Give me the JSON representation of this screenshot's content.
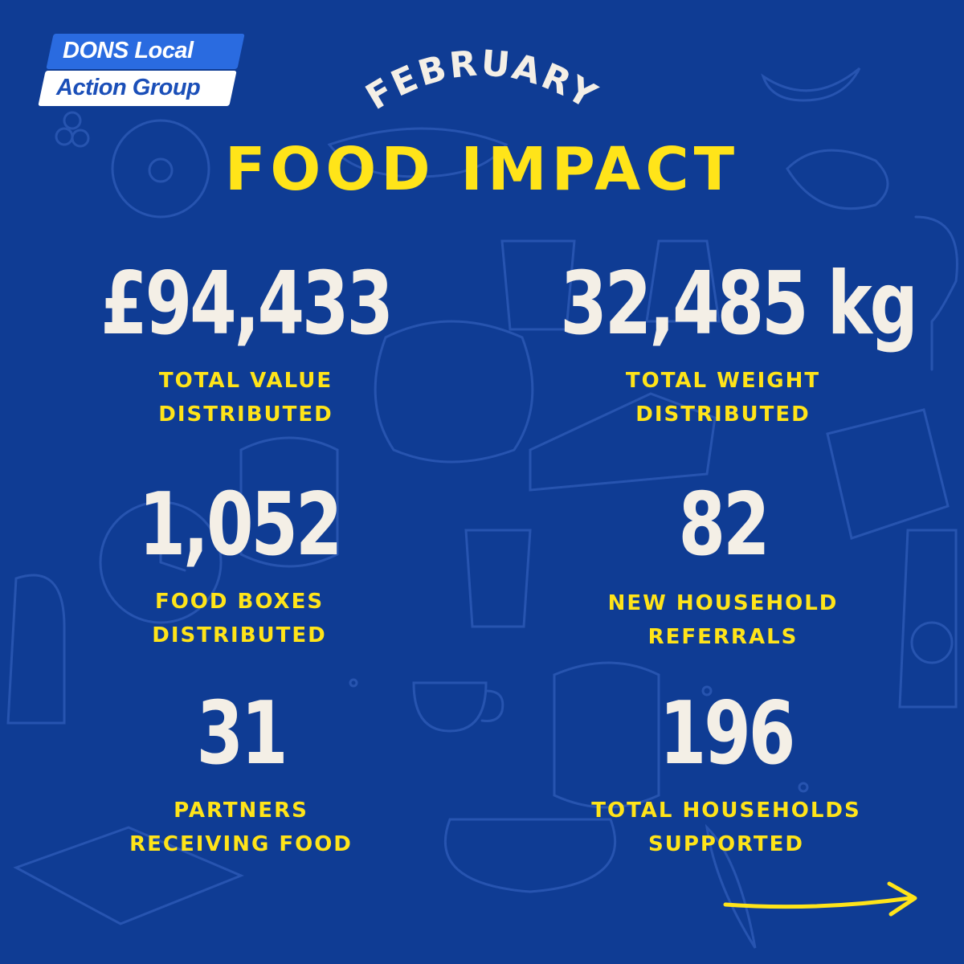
{
  "brand": {
    "line1": "DONS Local",
    "line2": "Action Group",
    "colors": {
      "background": "#0f3c94",
      "accent": "#ffe419",
      "number": "#f4efe6",
      "logo_blue": "#2a6be0"
    }
  },
  "header": {
    "month": "FEBRUARY",
    "title": "FOOD IMPACT"
  },
  "stats": [
    {
      "value": "£94,433",
      "label": "TOTAL VALUE\nDISTRIBUTED"
    },
    {
      "value": "32,485 kg",
      "label": "TOTAL WEIGHT\nDISTRIBUTED"
    },
    {
      "value": "1,052",
      "label": "FOOD BOXES\nDISTRIBUTED"
    },
    {
      "value": "82",
      "label": "NEW HOUSEHOLD\nREFERRALS"
    },
    {
      "value": "31",
      "label": "PARTNERS\nRECEIVING FOOD"
    },
    {
      "value": "196",
      "label": "TOTAL HOUSEHOLDS\nSUPPORTED"
    }
  ],
  "decor": {
    "next_arrow_icon": "arrow-right-icon",
    "background_pattern": "food-doodles"
  }
}
